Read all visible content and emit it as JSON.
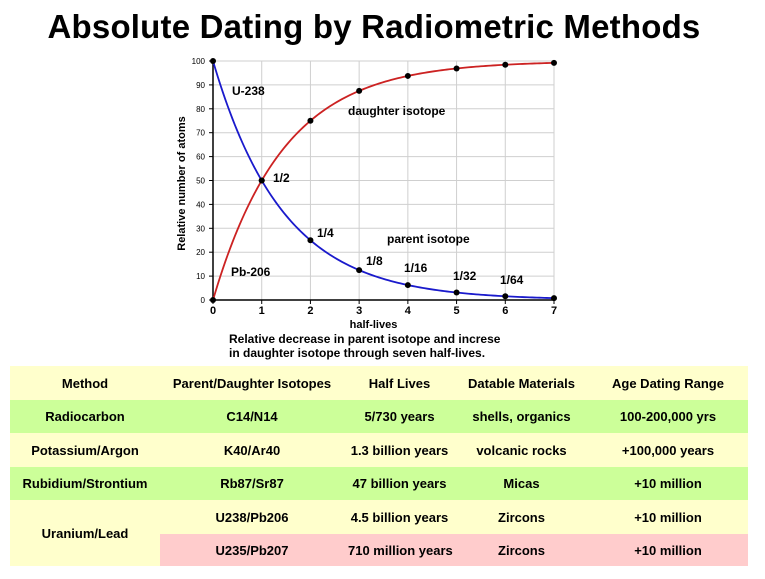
{
  "title": "Absolute Dating by Radiometric Methods",
  "chart_data": {
    "type": "line",
    "xlabel": "half-lives",
    "ylabel": "Relative number of atoms",
    "xlim": [
      0,
      7
    ],
    "ylim": [
      0,
      100
    ],
    "x_ticks": [
      "0",
      "1",
      "2",
      "3",
      "4",
      "5",
      "6",
      "7"
    ],
    "y_ticks": [
      "0",
      "10",
      "20",
      "30",
      "40",
      "50",
      "60",
      "70",
      "80",
      "90",
      "100"
    ],
    "grid": true,
    "x": [
      0,
      1,
      2,
      3,
      4,
      5,
      6,
      7
    ],
    "series": [
      {
        "name": "parent isotope",
        "color": "#1a1acc",
        "values": [
          100,
          50,
          25,
          12.5,
          6.25,
          3.125,
          1.5625,
          0.78
        ]
      },
      {
        "name": "daughter isotope",
        "color": "#cc2222",
        "values": [
          0,
          50,
          75,
          87.5,
          93.75,
          96.875,
          98.4375,
          99.22
        ]
      }
    ],
    "annotations": [
      {
        "text": "U-238"
      },
      {
        "text": "Pb-206"
      },
      {
        "text": "daughter isotope"
      },
      {
        "text": "parent isotope"
      },
      {
        "text": "1/2"
      },
      {
        "text": "1/4"
      },
      {
        "text": "1/8"
      },
      {
        "text": "1/16"
      },
      {
        "text": "1/32"
      },
      {
        "text": "1/64"
      }
    ]
  },
  "caption": {
    "line1": "Relative decrease in parent isotope and increse",
    "line2": "in daughter isotope through seven half-lives."
  },
  "table": {
    "headers": [
      "Method",
      "Parent/Daughter Isotopes",
      "Half Lives",
      "Datable Materials",
      "Age Dating Range"
    ],
    "rows": [
      {
        "method": "Radiocarbon",
        "isotopes": "C14/N14",
        "half_life": "5/730 years",
        "materials": "shells, organics",
        "range": "100-200,000 yrs"
      },
      {
        "method": "Potassium/Argon",
        "isotopes": "K40/Ar40",
        "half_life": "1.3 billion years",
        "materials": "volcanic rocks",
        "range": "+100,000 years"
      },
      {
        "method": "Rubidium/Strontium",
        "isotopes": "Rb87/Sr87",
        "half_life": "47 billion years",
        "materials": "Micas",
        "range": "+10 million"
      },
      {
        "method": "Uranium/Lead",
        "isotopes": "U238/Pb206",
        "half_life": "4.5 billion years",
        "materials": "Zircons",
        "range": "+10 million"
      },
      {
        "method": "",
        "isotopes": "U235/Pb207",
        "half_life": "710 million years",
        "materials": "Zircons",
        "range": "+10 million"
      }
    ]
  }
}
